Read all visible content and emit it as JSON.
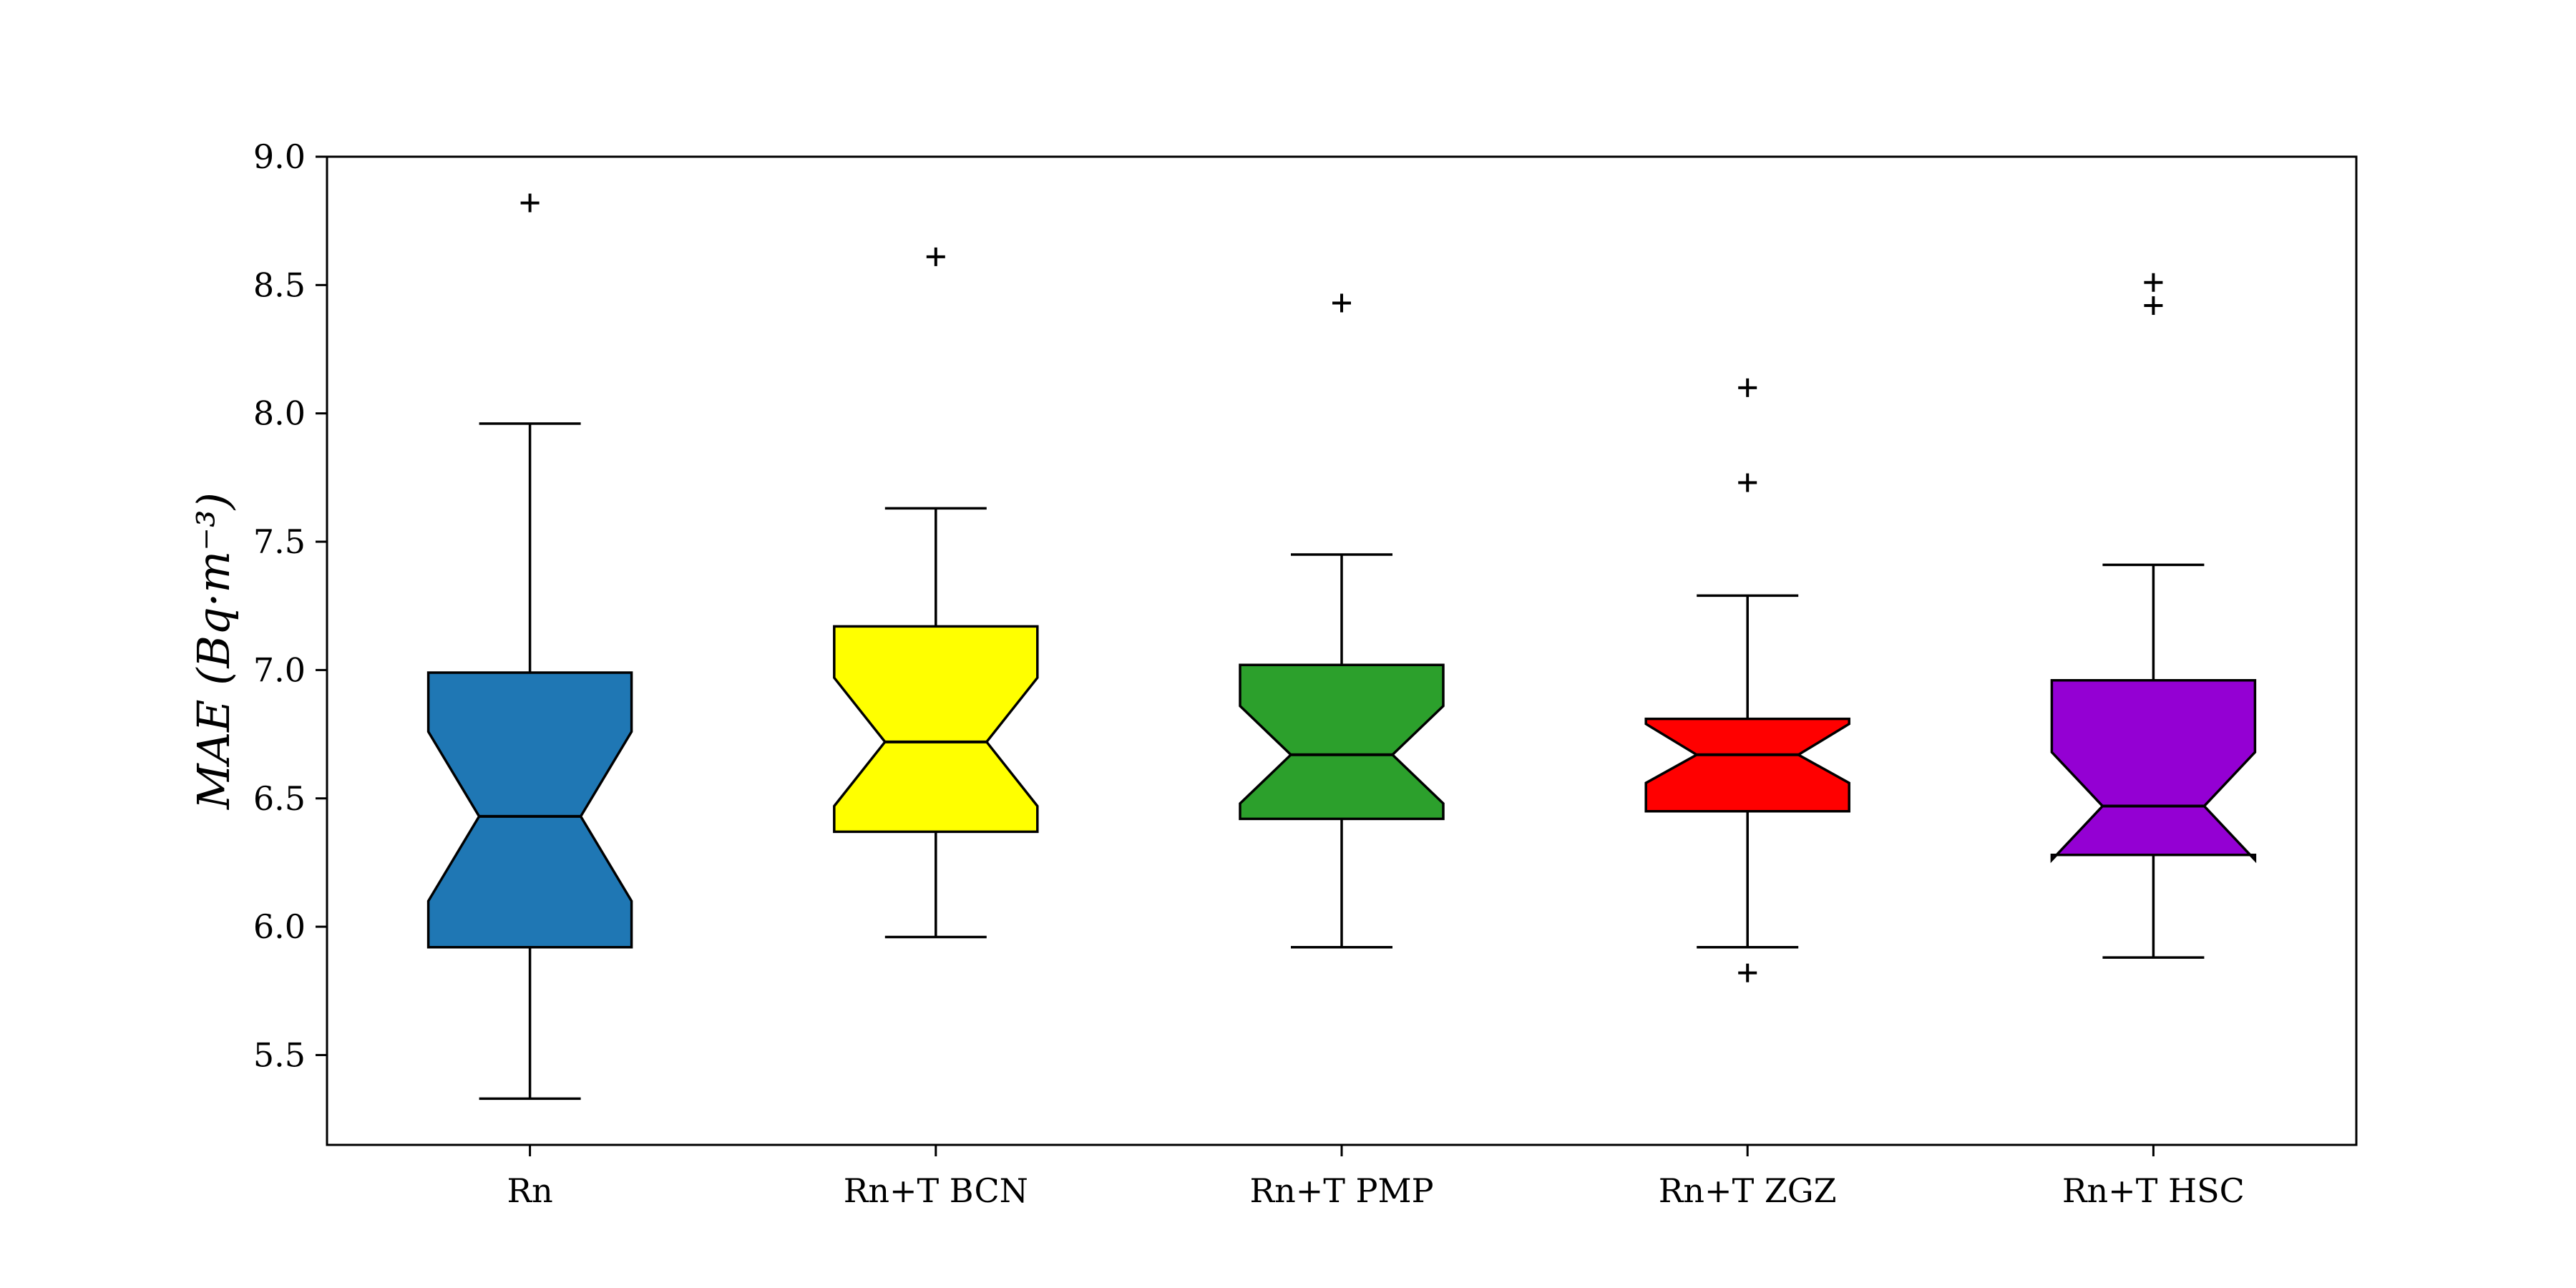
{
  "chart_data": {
    "type": "boxplot",
    "title": "",
    "xlabel": "",
    "ylabel": "MAE (Bq·m⁻³)",
    "ylim": [
      5.15,
      9.0
    ],
    "yticks": [
      5.5,
      6.0,
      6.5,
      7.0,
      7.5,
      8.0,
      8.5,
      9.0
    ],
    "ytick_labels": [
      "5.5",
      "6.0",
      "6.5",
      "7.0",
      "7.5",
      "8.0",
      "8.5",
      "9.0"
    ],
    "notched": true,
    "grid": false,
    "categories": [
      "Rn",
      "Rn+T BCN",
      "Rn+T PMP",
      "Rn+T ZGZ",
      "Rn+T HSC"
    ],
    "boxes": [
      {
        "label": "Rn",
        "color": "#1f77b4",
        "whisker_low": 5.33,
        "q1": 5.92,
        "notch_low": 6.1,
        "median": 6.43,
        "notch_high": 6.76,
        "q3": 6.99,
        "whisker_high": 7.96,
        "outliers": [
          8.82
        ]
      },
      {
        "label": "Rn+T BCN",
        "color": "#ffff00",
        "whisker_low": 5.96,
        "q1": 6.37,
        "notch_low": 6.47,
        "median": 6.72,
        "notch_high": 6.97,
        "q3": 7.17,
        "whisker_high": 7.63,
        "outliers": [
          8.61
        ]
      },
      {
        "label": "Rn+T PMP",
        "color": "#2ca02c",
        "whisker_low": 5.92,
        "q1": 6.42,
        "notch_low": 6.48,
        "median": 6.67,
        "notch_high": 6.86,
        "q3": 7.02,
        "whisker_high": 7.45,
        "outliers": [
          8.43
        ]
      },
      {
        "label": "Rn+T ZGZ",
        "color": "#ff0000",
        "whisker_low": 5.92,
        "q1": 6.45,
        "notch_low": 6.56,
        "median": 6.67,
        "notch_high": 6.79,
        "q3": 6.81,
        "whisker_high": 7.29,
        "outliers": [
          5.82,
          7.73,
          8.1
        ]
      },
      {
        "label": "Rn+T HSC",
        "color": "#9400d3",
        "whisker_low": 5.88,
        "q1": 6.28,
        "notch_low": 6.26,
        "median": 6.47,
        "notch_high": 6.68,
        "q3": 6.96,
        "whisker_high": 7.41,
        "outliers": [
          8.42,
          8.51
        ]
      }
    ]
  }
}
